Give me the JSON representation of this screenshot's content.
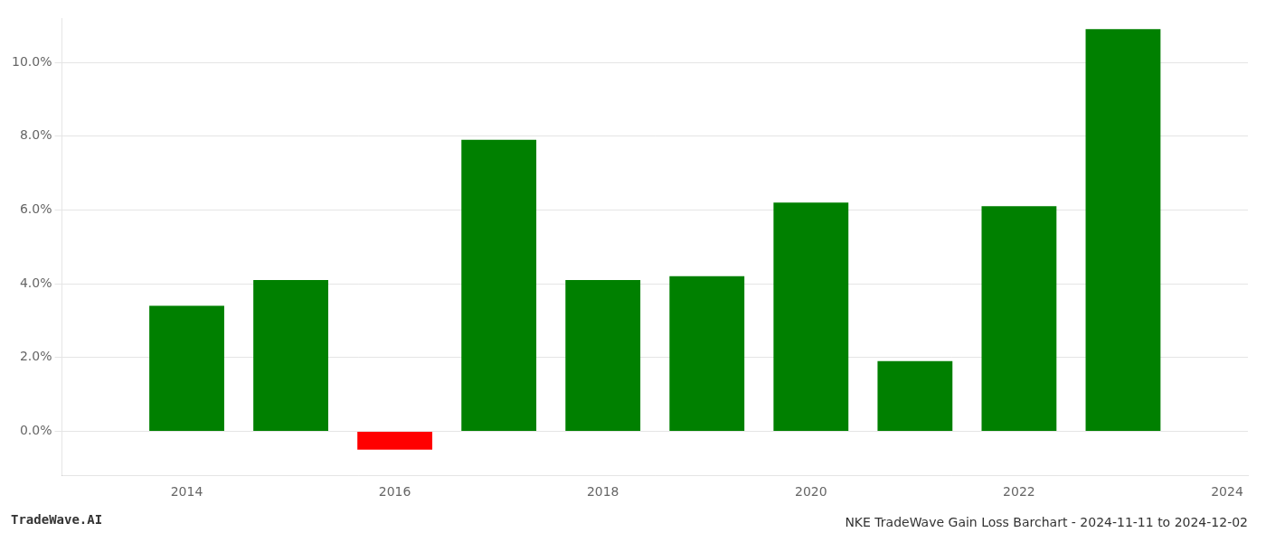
{
  "chart_data": {
    "type": "bar",
    "title": "NKE TradeWave Gain Loss Barchart - 2024-11-11 to 2024-12-02",
    "annotations": [
      "TradeWave.AI"
    ],
    "x": [
      2014,
      2015,
      2016,
      2017,
      2018,
      2019,
      2020,
      2021,
      2022,
      2023
    ],
    "values": [
      0.034,
      0.041,
      -0.005,
      0.079,
      0.041,
      0.042,
      0.062,
      0.019,
      0.061,
      0.109
    ],
    "colors": [
      "#008000",
      "#008000",
      "#ff0000",
      "#008000",
      "#008000",
      "#008000",
      "#008000",
      "#008000",
      "#008000",
      "#008000"
    ],
    "xlim": [
      2012.8,
      2024.2
    ],
    "xticks": [
      2014,
      2016,
      2018,
      2020,
      2022,
      2024
    ],
    "ylim": [
      -0.012,
      0.112
    ],
    "yticks": [
      {
        "value": 0.0,
        "label": "0.0%"
      },
      {
        "value": 0.02,
        "label": "2.0%"
      },
      {
        "value": 0.04,
        "label": "4.0%"
      },
      {
        "value": 0.06,
        "label": "6.0%"
      },
      {
        "value": 0.08,
        "label": "8.0%"
      },
      {
        "value": 0.1,
        "label": "10.0%"
      }
    ],
    "grid": "y"
  }
}
